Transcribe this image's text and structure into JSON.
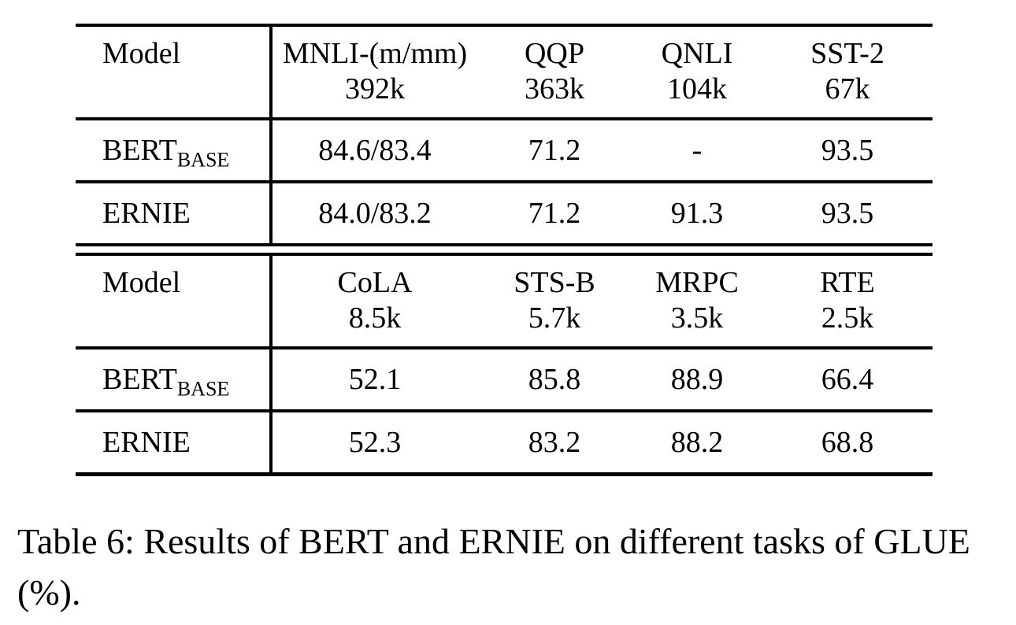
{
  "page": {
    "background_color": "#ffffff",
    "text_color": "#000000"
  },
  "caption": "Table 6: Results of BERT and ERNIE on different tasks of GLUE (%).",
  "tables": [
    {
      "header": {
        "model_label": "Model",
        "columns": [
          {
            "task": "MNLI-(m/mm)",
            "size": "392k"
          },
          {
            "task": "QQP",
            "size": "363k"
          },
          {
            "task": "QNLI",
            "size": "104k"
          },
          {
            "task": "SST-2",
            "size": "67k"
          }
        ]
      },
      "rows": [
        {
          "model": "BERT",
          "model_subscript": "BASE",
          "values": [
            "84.6/83.4",
            "71.2",
            "-",
            "93.5"
          ]
        },
        {
          "model": "ERNIE",
          "model_subscript": "",
          "values": [
            "84.0/83.2",
            "71.2",
            "91.3",
            "93.5"
          ]
        }
      ]
    },
    {
      "header": {
        "model_label": "Model",
        "columns": [
          {
            "task": "CoLA",
            "size": "8.5k"
          },
          {
            "task": "STS-B",
            "size": "5.7k"
          },
          {
            "task": "MRPC",
            "size": "3.5k"
          },
          {
            "task": "RTE",
            "size": "2.5k"
          }
        ]
      },
      "rows": [
        {
          "model": "BERT",
          "model_subscript": "BASE",
          "values": [
            "52.1",
            "85.8",
            "88.9",
            "66.4"
          ]
        },
        {
          "model": "ERNIE",
          "model_subscript": "",
          "values": [
            "52.3",
            "83.2",
            "88.2",
            "68.8"
          ]
        }
      ]
    }
  ]
}
